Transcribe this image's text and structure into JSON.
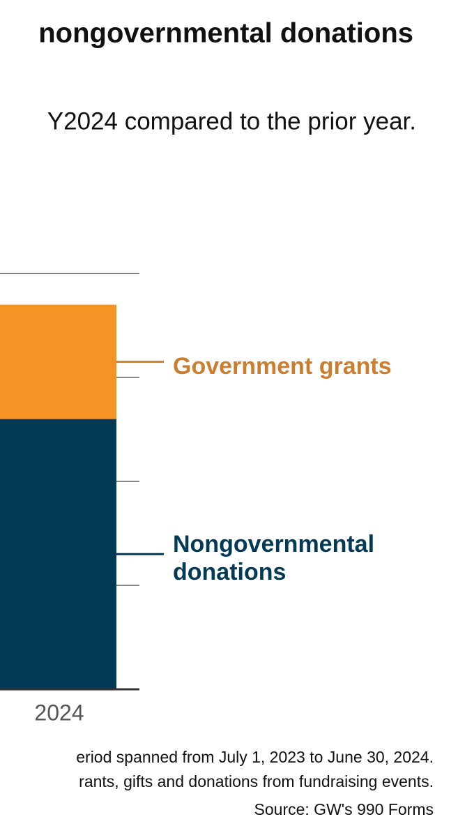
{
  "chart_data": {
    "type": "stacked_bar",
    "title": "nongovernmental donations",
    "subtitle": "Y2024 compared to the prior year.",
    "categories": [
      "2024"
    ],
    "series": [
      {
        "name": "Nongovernmental donations",
        "color": "#023a56",
        "label_color": "#023a56",
        "values": [
          2.6
        ]
      },
      {
        "name": "Government grants",
        "color": "#f39325",
        "label_color": "#c97f2f",
        "values": [
          1.1
        ]
      }
    ],
    "ylim": [
      0,
      4
    ],
    "yticks": [
      0,
      1,
      2,
      3,
      4
    ],
    "grid": true,
    "notes": [
      "eriod spanned from July 1, 2023 to June 30, 2024.",
      "rants, gifts and donations from fundraising events."
    ],
    "source": "Source: GW's 990 Forms"
  }
}
